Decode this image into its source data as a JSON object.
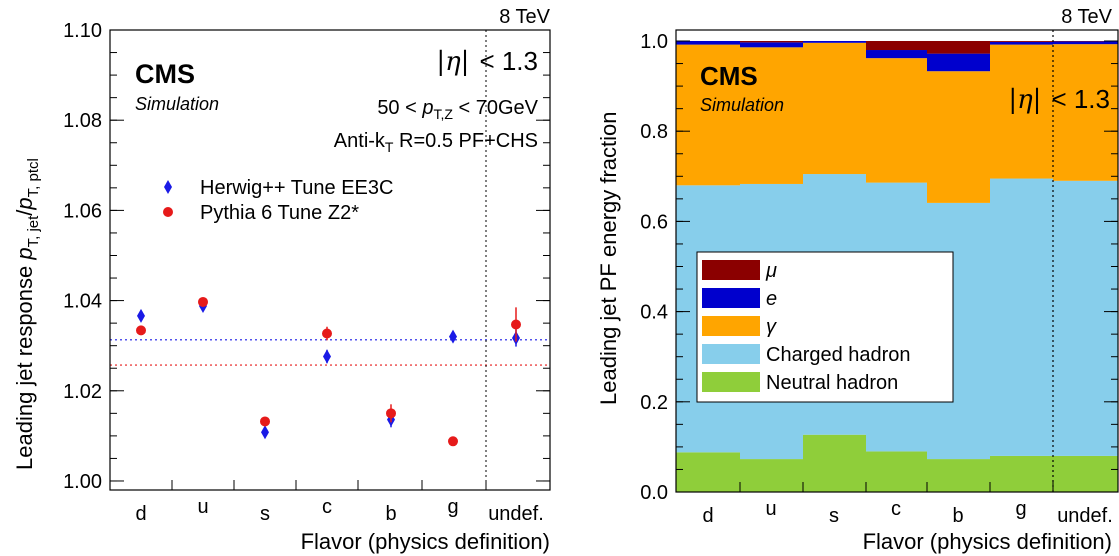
{
  "chart_data": [
    {
      "type": "scatter",
      "energy_label": "8 TeV",
      "cms_label": "CMS",
      "simulation_label": "Simulation",
      "eta_label": "|η| < 1.3",
      "pt_label": "50 < pT,Z < 70GeV",
      "algo_label": "Anti-kT R=0.5 PF+CHS",
      "ylabel": "Leading jet response pT, jet/pT, ptcl",
      "xlabel": "Flavor (physics definition)",
      "categories": [
        "d",
        "u",
        "s",
        "c",
        "b",
        "g",
        "undef."
      ],
      "ylim": [
        0.998,
        1.1
      ],
      "yticks": [
        "1.00",
        "1.02",
        "1.04",
        "1.06",
        "1.08",
        "1.10"
      ],
      "ytick_values": [
        1.0,
        1.02,
        1.04,
        1.06,
        1.08,
        1.1
      ],
      "separator_after_category": "g",
      "series": [
        {
          "name": "Herwig++ Tune EE3C",
          "marker": "diamond",
          "color": "#1a1ae6",
          "values": [
            1.0366,
            1.0388,
            1.0108,
            1.0276,
            1.0136,
            1.032,
            1.0317
          ],
          "errors": [
            0.0008,
            0.0006,
            0.001,
            0.0015,
            0.0017,
            0.0005,
            0.0019
          ],
          "reference_line": 1.0313
        },
        {
          "name": "Pythia 6 Tune Z2*",
          "marker": "circle",
          "color": "#e61a1a",
          "values": [
            1.0334,
            1.0397,
            1.0132,
            1.0327,
            1.015,
            1.0088,
            1.0347
          ],
          "errors": [
            0.0006,
            0.0005,
            0.001,
            0.0015,
            0.002,
            0.0004,
            0.0038
          ],
          "reference_line": 1.0257
        }
      ]
    },
    {
      "type": "bar",
      "stacked": true,
      "energy_label": "8 TeV",
      "cms_label": "CMS",
      "simulation_label": "Simulation",
      "eta_label": "|η| < 1.3",
      "ylabel": "Leading jet PF energy fraction",
      "xlabel": "Flavor (physics definition)",
      "categories": [
        "d",
        "u",
        "s",
        "c",
        "b",
        "g",
        "undef."
      ],
      "ylim": [
        0,
        1.0
      ],
      "yticks": [
        "0.0",
        "0.2",
        "0.4",
        "0.6",
        "0.8",
        "1.0"
      ],
      "ytick_values": [
        0,
        0.2,
        0.4,
        0.6,
        0.8,
        1.0
      ],
      "legend_order": [
        "μ",
        "e",
        "γ",
        "Charged hadron",
        "Neutral hadron"
      ],
      "series": [
        {
          "name": "Neutral hadron",
          "color": "#8fce3a",
          "values": [
            0.088,
            0.073,
            0.127,
            0.09,
            0.073,
            0.08,
            0.08
          ]
        },
        {
          "name": "Charged hadron",
          "color": "#87ceeb",
          "values": [
            0.592,
            0.61,
            0.578,
            0.596,
            0.568,
            0.615,
            0.61
          ]
        },
        {
          "name": "γ",
          "color": "#ffa500",
          "values": [
            0.312,
            0.303,
            0.291,
            0.276,
            0.292,
            0.297,
            0.303
          ]
        },
        {
          "name": "e",
          "color": "#0000cd",
          "values": [
            0.008,
            0.011,
            0.004,
            0.018,
            0.039,
            0.006,
            0.006
          ]
        },
        {
          "name": "μ",
          "color": "#8b0000",
          "values": [
            0.0,
            0.003,
            0.0,
            0.02,
            0.028,
            0.002,
            0.001
          ]
        }
      ]
    }
  ]
}
